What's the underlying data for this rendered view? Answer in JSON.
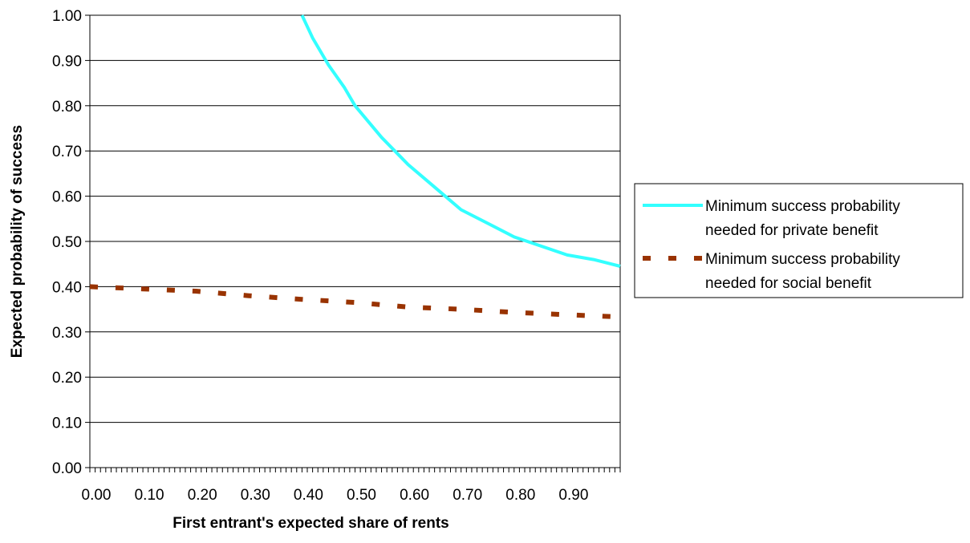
{
  "chart_data": {
    "type": "line",
    "xlabel": "First entrant's expected share of rents",
    "ylabel": "Expected probability of success",
    "xlim": [
      0,
      1
    ],
    "ylim": [
      0,
      1
    ],
    "x_ticks": [
      "0.00",
      "0.10",
      "0.20",
      "0.30",
      "0.40",
      "0.50",
      "0.60",
      "0.70",
      "0.80",
      "0.90"
    ],
    "y_ticks": [
      "0.00",
      "0.10",
      "0.20",
      "0.30",
      "0.40",
      "0.50",
      "0.60",
      "0.70",
      "0.80",
      "0.90",
      "1.00"
    ],
    "grid": "horizontal",
    "legend_position": "right",
    "series": [
      {
        "name": "Minimum success probability needed for private benefit",
        "name_lines": [
          "Minimum success probability",
          "needed for private benefit"
        ],
        "style": "solid",
        "color": "#33ffff",
        "x": [
          0.4,
          0.42,
          0.45,
          0.48,
          0.5,
          0.55,
          0.6,
          0.65,
          0.7,
          0.75,
          0.8,
          0.85,
          0.9,
          0.95,
          1.0
        ],
        "y": [
          1.0,
          0.95,
          0.89,
          0.84,
          0.8,
          0.73,
          0.67,
          0.62,
          0.57,
          0.54,
          0.51,
          0.49,
          0.47,
          0.46,
          0.445
        ]
      },
      {
        "name": "Minimum success probability needed for social benefit",
        "name_lines": [
          "Minimum success probability",
          "needed for social benefit"
        ],
        "style": "dashed",
        "color": "#993300",
        "x": [
          0.0,
          0.1,
          0.2,
          0.3,
          0.4,
          0.5,
          0.6,
          0.7,
          0.8,
          0.9,
          1.0
        ],
        "y": [
          0.4,
          0.395,
          0.39,
          0.38,
          0.372,
          0.365,
          0.355,
          0.35,
          0.343,
          0.338,
          0.333
        ]
      }
    ]
  }
}
